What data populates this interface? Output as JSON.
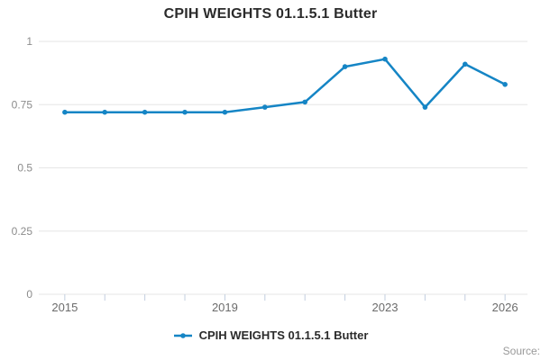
{
  "title": "CPIH WEIGHTS 01.1.5.1 Butter",
  "legend": {
    "label": "CPIH WEIGHTS 01.1.5.1 Butter"
  },
  "source_label": "Source:",
  "colors": {
    "line": "#1585c5",
    "marker": "#1585c5",
    "gridline": "#e6e6e6",
    "axis_tick": "#c2cedf",
    "y_tick_label": "#8c8c8c",
    "x_tick_label": "#6b6b6b",
    "title_text": "#2b2b2b",
    "legend_text": "#2b2b2b",
    "source_text": "#999999"
  },
  "chart_data": {
    "type": "line",
    "title": "CPIH WEIGHTS 01.1.5.1 Butter",
    "xlabel": "",
    "ylabel": "",
    "x": [
      2015,
      2016,
      2017,
      2018,
      2019,
      2020,
      2021,
      2022,
      2023,
      2024,
      2025,
      2026
    ],
    "series": [
      {
        "name": "CPIH WEIGHTS 01.1.5.1 Butter",
        "values": [
          0.72,
          0.72,
          0.72,
          0.72,
          0.72,
          0.74,
          0.76,
          0.9,
          0.93,
          0.74,
          0.91,
          0.83
        ]
      }
    ],
    "ylim": [
      0,
      1
    ],
    "xlim": [
      2014.35,
      2026.56
    ],
    "y_ticks": [
      0,
      0.25,
      0.5,
      0.75,
      1
    ],
    "y_tick_labels": [
      "0",
      "0.25",
      "0.5",
      "0.75",
      "1"
    ],
    "x_minor_ticks": [
      2015,
      2016,
      2017,
      2018,
      2019,
      2020,
      2021,
      2022,
      2023,
      2024,
      2025,
      2026
    ],
    "x_labeled_ticks": [
      2015,
      2019,
      2023,
      2026
    ],
    "grid": "horizontal-only",
    "legend_position": "bottom",
    "marker": "circle"
  }
}
